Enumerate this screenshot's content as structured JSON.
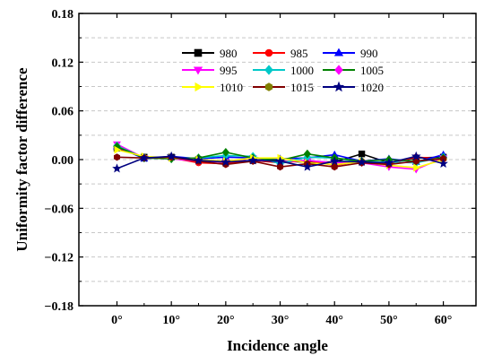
{
  "chart_data": {
    "type": "line",
    "xlabel": "Incidence angle",
    "ylabel": "Uniformity factor difference",
    "x": [
      0,
      5,
      10,
      15,
      20,
      25,
      30,
      35,
      40,
      45,
      50,
      55,
      60
    ],
    "x_tick_values": [
      0,
      10,
      20,
      30,
      40,
      50,
      60
    ],
    "x_tick_labels": [
      "0°",
      "10°",
      "20°",
      "30°",
      "40°",
      "50°",
      "60°"
    ],
    "xlim": [
      -7,
      66
    ],
    "ylim": [
      -0.18,
      0.18
    ],
    "y_tick_values": [
      -0.18,
      -0.12,
      -0.06,
      0.0,
      0.06,
      0.12,
      0.18
    ],
    "y_tick_labels": [
      "−0.18",
      "−0.12",
      "−0.06",
      "0.00",
      "0.06",
      "0.12",
      "0.18"
    ],
    "grid": "horizontal dashed",
    "legend_position": "top-center",
    "series": [
      {
        "name": "980",
        "color": "#000000",
        "marker": "square",
        "values": [
          0.014,
          0.003,
          0.003,
          0.0,
          -0.003,
          -0.001,
          -0.002,
          -0.003,
          -0.003,
          0.007,
          -0.004,
          0.002,
          0.003
        ]
      },
      {
        "name": "985",
        "color": "#ff0000",
        "marker": "circle",
        "values": [
          0.015,
          0.002,
          0.002,
          -0.004,
          -0.005,
          -0.001,
          -0.004,
          -0.001,
          -0.007,
          -0.002,
          -0.005,
          0.003,
          0.001
        ]
      },
      {
        "name": "990",
        "color": "#0000ff",
        "marker": "triangle-up",
        "values": [
          0.016,
          0.001,
          0.004,
          0.001,
          0.003,
          0.002,
          0.001,
          0.002,
          0.006,
          -0.002,
          0.001,
          -0.003,
          0.006
        ]
      },
      {
        "name": "995",
        "color": "#ff00ff",
        "marker": "triangle-down",
        "values": [
          0.019,
          0.002,
          0.001,
          -0.002,
          -0.003,
          0.002,
          -0.003,
          -0.001,
          -0.004,
          -0.004,
          -0.009,
          -0.012,
          0.002
        ]
      },
      {
        "name": "1000",
        "color": "#00c8c8",
        "marker": "diamond",
        "values": [
          0.017,
          0.002,
          0.001,
          0.002,
          0.005,
          0.004,
          -0.005,
          0.003,
          0.002,
          -0.003,
          -0.003,
          -0.004,
          0.003
        ]
      },
      {
        "name": "1005",
        "color": "#008000",
        "marker": "diamond",
        "values": [
          0.016,
          0.002,
          0.001,
          0.002,
          0.009,
          0.002,
          -0.001,
          0.007,
          0.002,
          -0.002,
          0.0,
          -0.002,
          0.002
        ]
      },
      {
        "name": "1010",
        "color": "#ffff00",
        "marker": "triangle-right",
        "values": [
          0.012,
          0.004,
          0.002,
          0.0,
          -0.002,
          0.002,
          0.002,
          -0.004,
          -0.006,
          -0.003,
          -0.007,
          -0.01,
          0.0
        ]
      },
      {
        "name": "1015",
        "color": "#800000",
        "marker": "hexagon",
        "values": [
          0.003,
          0.002,
          0.003,
          -0.002,
          -0.006,
          -0.002,
          -0.009,
          -0.005,
          -0.009,
          -0.004,
          -0.006,
          -0.002,
          0.001
        ]
      },
      {
        "name": "1020",
        "color": "#000080",
        "marker": "star",
        "values": [
          -0.011,
          0.002,
          0.004,
          -0.001,
          -0.003,
          -0.001,
          -0.002,
          -0.009,
          -0.002,
          -0.003,
          -0.004,
          0.004,
          -0.005
        ]
      }
    ],
    "legend_marker_colors": {
      "1000": "#00c8c8",
      "1005": "#ff00ff",
      "1010": "#ffff00",
      "1015": "#808000",
      "1020": "#000080"
    },
    "legend_line_colors": {
      "1005": "#008000",
      "1015": "#800000"
    }
  }
}
